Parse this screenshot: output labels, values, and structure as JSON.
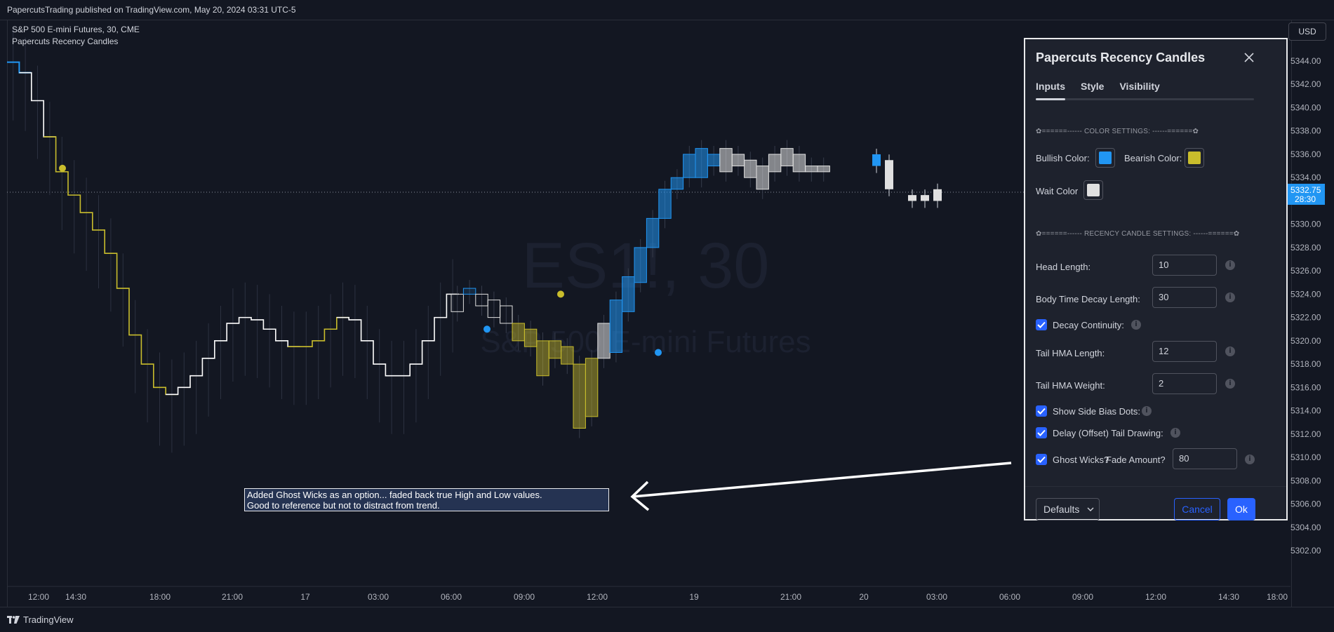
{
  "header": {
    "publish_line": "PapercutsTrading published on TradingView.com, May 20, 2024 03:31 UTC-5"
  },
  "legend": {
    "symbol_line": "S&P 500 E-mini Futures, 30, CME",
    "indicator_line": "Papercuts Recency Candles"
  },
  "watermark": {
    "ticker": "ES1!, 30",
    "name": "S&P 500 E-mini Futures"
  },
  "price_axis": {
    "currency": "USD",
    "labels": [
      "5344.00",
      "5342.00",
      "5340.00",
      "5338.00",
      "5336.00",
      "5334.00",
      "5332.00",
      "5330.00",
      "5328.00",
      "5326.00",
      "5324.00",
      "5322.00",
      "5320.00",
      "5318.00",
      "5316.00",
      "5314.00",
      "5312.00",
      "5310.00",
      "5308.00",
      "5306.00",
      "5304.00",
      "5302.00"
    ],
    "last_price": "5332.75",
    "countdown": "28:30"
  },
  "time_axis": {
    "labels": [
      "12:00",
      "14:30",
      "18:00",
      "21:00",
      "17",
      "03:00",
      "06:00",
      "09:00",
      "12:00",
      "19",
      "21:00",
      "20",
      "03:00",
      "06:00",
      "09:00",
      "12:00",
      "14:30",
      "18:00"
    ]
  },
  "annotation": {
    "line1": "Added Ghost Wicks as an option... faded back true High and Low values.",
    "line2": "Good to reference but not to distract from trend."
  },
  "dialog": {
    "title": "Papercuts Recency Candles",
    "tabs": [
      "Inputs",
      "Style",
      "Visibility"
    ],
    "active_tab": "Inputs",
    "color_section": "✿======------ COLOR SETTINGS: ------======✿",
    "bullish_label": "Bullish Color:",
    "bearish_label": "Bearish Color:",
    "wait_label": "Wait Color",
    "colors": {
      "bullish": "#2196f3",
      "bearish": "#c9bd2c",
      "wait": "#e0e0e0"
    },
    "recency_section": "✿======------ RECENCY CANDLE SETTINGS: ------======✿",
    "head_length_label": "Head Length:",
    "head_length": "10",
    "body_decay_label": "Body Time Decay Length:",
    "body_decay": "30",
    "decay_continuity_label": "Decay Continuity:",
    "tail_hma_length_label": "Tail HMA Length:",
    "tail_hma_length": "12",
    "tail_hma_weight_label": "Tail HMA Weight:",
    "tail_hma_weight": "2",
    "side_bias_label": "Show Side Bias Dots:",
    "delay_tail_label": "Delay (Offset) Tail Drawing:",
    "ghost_wicks_label": "Ghost Wicks?",
    "fade_label": "Fade Amount?",
    "fade_amount": "80",
    "defaults_label": "Defaults",
    "cancel_label": "Cancel",
    "ok_label": "Ok"
  },
  "footer": {
    "logo_text": "TradingView"
  },
  "chart_data": {
    "type": "candlestick",
    "price_range": [
      5301,
      5345
    ],
    "bull_color": "#2196f3",
    "bear_color": "#c9bd2c",
    "wait_color": "#e0e0e0",
    "tail_line": [
      5343.9,
      5343.0,
      5340.6,
      5337.5,
      5334.5,
      5332.5,
      5331.0,
      5329.5,
      5327.5,
      5324.5,
      5320.5,
      5318.0,
      5316.0,
      5315.4,
      5316.0,
      5317.0,
      5318.5,
      5320.0,
      5321.5,
      5322.0,
      5321.8,
      5321.0,
      5320.0,
      5319.5,
      5319.5,
      5320.0,
      5321.0,
      5322.0,
      5321.8,
      5320.0,
      5318.0,
      5317.0,
      5317.0,
      5318.0,
      5320.0,
      5322.0,
      5324.0
    ],
    "recency_candles": [
      {
        "o": 5322.5,
        "c": 5324.0,
        "k": "w"
      },
      {
        "o": 5324.0,
        "c": 5324.5,
        "k": "bull"
      },
      {
        "o": 5324.0,
        "c": 5323.0,
        "k": "w"
      },
      {
        "o": 5323.5,
        "c": 5322.0,
        "k": "w"
      },
      {
        "o": 5323.0,
        "c": 5321.5,
        "k": "w"
      },
      {
        "o": 5321.5,
        "c": 5320.0,
        "k": "bear"
      },
      {
        "o": 5321.0,
        "c": 5319.5,
        "k": "bear"
      },
      {
        "o": 5320.0,
        "c": 5317.0,
        "k": "bear"
      },
      {
        "o": 5320.0,
        "c": 5318.5,
        "k": "bear"
      },
      {
        "o": 5319.5,
        "c": 5318.0,
        "k": "bear"
      },
      {
        "o": 5318.0,
        "c": 5312.5,
        "k": "bear"
      },
      {
        "o": 5318.5,
        "c": 5313.5,
        "k": "bear"
      },
      {
        "o": 5318.5,
        "c": 5321.5,
        "k": "w"
      },
      {
        "o": 5319.0,
        "c": 5323.5,
        "k": "bull"
      },
      {
        "o": 5322.5,
        "c": 5325.5,
        "k": "bull"
      },
      {
        "o": 5325.0,
        "c": 5328.0,
        "k": "bull"
      },
      {
        "o": 5328.0,
        "c": 5330.5,
        "k": "bull"
      },
      {
        "o": 5330.5,
        "c": 5333.0,
        "k": "bull"
      },
      {
        "o": 5333.0,
        "c": 5334.0,
        "k": "bull"
      },
      {
        "o": 5334.0,
        "c": 5336.0,
        "k": "bull"
      },
      {
        "o": 5334.0,
        "c": 5336.5,
        "k": "bull"
      },
      {
        "o": 5335.0,
        "c": 5336.0,
        "k": "bull"
      },
      {
        "o": 5336.5,
        "c": 5334.5,
        "k": "w"
      },
      {
        "o": 5336.0,
        "c": 5335.0,
        "k": "w"
      },
      {
        "o": 5335.5,
        "c": 5334.0,
        "k": "w"
      },
      {
        "o": 5335.0,
        "c": 5333.0,
        "k": "w"
      },
      {
        "o": 5334.5,
        "c": 5336.0,
        "k": "w"
      },
      {
        "o": 5335.0,
        "c": 5336.5,
        "k": "w"
      },
      {
        "o": 5336.0,
        "c": 5334.5,
        "k": "w"
      },
      {
        "o": 5334.5,
        "c": 5335.0,
        "k": "w"
      },
      {
        "o": 5334.5,
        "c": 5335.0,
        "k": "w"
      }
    ],
    "solid_candles": [
      {
        "o": 5336.0,
        "c": 5335.0,
        "k": "bull"
      },
      {
        "o": 5335.5,
        "c": 5333.0,
        "k": "wait"
      },
      {
        "o": 5332.5,
        "c": 5332.0,
        "k": "wait"
      },
      {
        "o": 5332.5,
        "c": 5332.0,
        "k": "wait"
      },
      {
        "o": 5333.0,
        "c": 5332.0,
        "k": "wait"
      }
    ],
    "bias_dots": [
      {
        "p": 5334.8,
        "kind": "bear"
      },
      {
        "p": 5321.0,
        "kind": "bull"
      },
      {
        "p": 5324.0,
        "kind": "bear"
      },
      {
        "p": 5319.0,
        "kind": "bull"
      },
      {
        "p": 5335.0,
        "kind": "bull"
      }
    ]
  }
}
